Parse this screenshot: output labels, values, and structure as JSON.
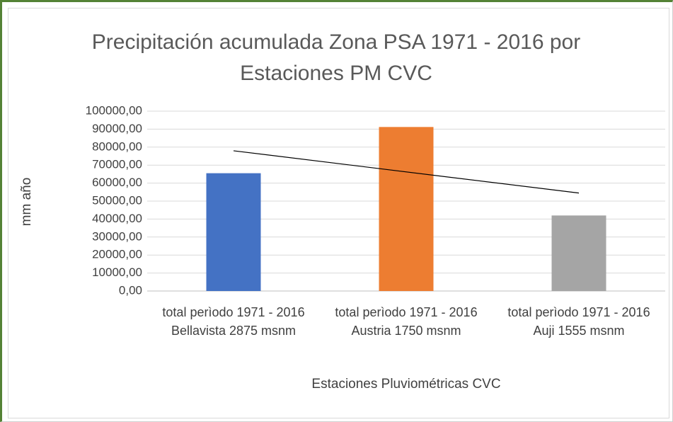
{
  "chart_data": {
    "type": "bar",
    "title": "Precipitación acumulada Zona PSA 1971 - 2016 por Estaciones PM CVC",
    "x_label": "Estaciones Pluviométricas CVC",
    "y_label": "mm año",
    "categories": [
      "total perìodo 1971 - 2016 Bellavista 2875 msnm",
      "total perìodo 1971 - 2016 Austria 1750 msnm",
      "total perìodo 1971 - 2016 Auji 1555 msnm"
    ],
    "values": [
      65500,
      91200,
      42000
    ],
    "colors": [
      "#4472c4",
      "#ed7d31",
      "#a5a5a5"
    ],
    "ylim": [
      0,
      100000
    ],
    "yticks": [
      {
        "value": 0,
        "label": "0,00"
      },
      {
        "value": 10000,
        "label": "10000,00"
      },
      {
        "value": 20000,
        "label": "20000,00"
      },
      {
        "value": 30000,
        "label": "30000,00"
      },
      {
        "value": 40000,
        "label": "40000,00"
      },
      {
        "value": 50000,
        "label": "50000,00"
      },
      {
        "value": 60000,
        "label": "60000,00"
      },
      {
        "value": 70000,
        "label": "70000,00"
      },
      {
        "value": 80000,
        "label": "80000,00"
      },
      {
        "value": 90000,
        "label": "90000,00"
      },
      {
        "value": 100000,
        "label": "100000,00"
      }
    ],
    "grid": true,
    "trendline": "linear"
  }
}
